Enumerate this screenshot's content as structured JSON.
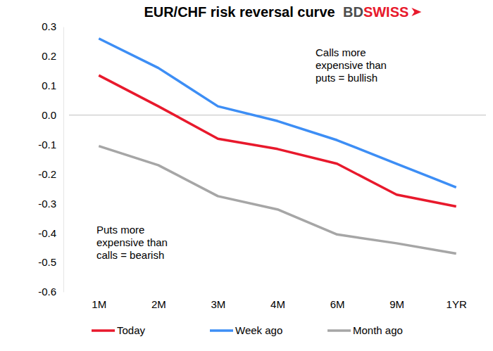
{
  "chart_data": {
    "type": "line",
    "title": "EUR/CHF risk reversal curve",
    "logo": [
      "BD",
      "SWISS"
    ],
    "annotations": [
      {
        "lines": [
          "Calls more",
          "expensive than",
          "puts = bullish"
        ]
      },
      {
        "lines": [
          "Puts more",
          "expensive than",
          "calls = bearish"
        ]
      }
    ],
    "categories": [
      "1M",
      "2M",
      "3M",
      "4M",
      "6M",
      "9M",
      "1YR"
    ],
    "series": [
      {
        "name": "Today",
        "color": "#e8192c",
        "values": [
          0.135,
          0.03,
          -0.08,
          -0.115,
          -0.165,
          -0.27,
          -0.31
        ]
      },
      {
        "name": "Week ago",
        "color": "#3d8ef5",
        "values": [
          0.26,
          0.16,
          0.03,
          -0.02,
          -0.085,
          -0.165,
          -0.245
        ]
      },
      {
        "name": "Month ago",
        "color": "#a6a6a6",
        "values": [
          -0.105,
          -0.17,
          -0.275,
          -0.32,
          -0.405,
          -0.435,
          -0.47
        ]
      }
    ],
    "ylim": [
      -0.6,
      0.3
    ],
    "yticks": [
      -0.6,
      -0.5,
      -0.4,
      -0.3,
      -0.2,
      -0.1,
      {
        "value": 0,
        "label": "0.0"
      },
      0.1,
      0.2,
      0.3
    ],
    "grid": false,
    "legend": "bottom"
  }
}
